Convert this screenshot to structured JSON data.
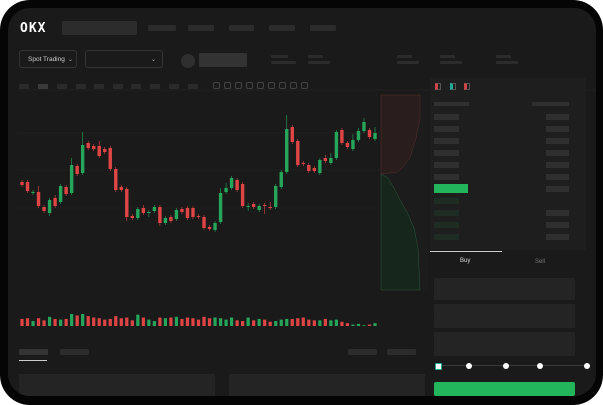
{
  "header": {
    "logo": "OKX",
    "market_selector": "Spot Trading"
  },
  "chart_toolbar_icons": [
    "indicator-icon",
    "chevron-down-icon",
    "interval-icon",
    "chevron-down-icon",
    "line-icon",
    "ruler-icon",
    "camera-icon",
    "settings-icon",
    "fullscreen-icon"
  ],
  "orderbook": {
    "view_icons": [
      "both-sides-icon",
      "bids-only-icon",
      "asks-only-icon"
    ]
  },
  "trade_form": {
    "tabs": [
      "Buy",
      "Sell"
    ],
    "active_tab": "Buy",
    "slider_percent": 0,
    "buy_button_color": "#22b55c"
  },
  "colors": {
    "up": "#26a65b",
    "down": "#e04545",
    "background": "#1a1a1a"
  },
  "chart_data": {
    "type": "candlestick",
    "ylim": [
      -50,
      145
    ],
    "grid": true,
    "ohlc": [
      [
        58,
        60,
        53,
        55
      ],
      [
        58,
        60,
        47,
        49
      ],
      [
        47,
        50,
        45,
        48
      ],
      [
        48,
        54,
        32,
        34
      ],
      [
        33,
        35,
        27,
        29
      ],
      [
        27,
        42,
        24,
        40
      ],
      [
        42,
        45,
        32,
        34
      ],
      [
        38,
        56,
        36,
        54
      ],
      [
        53,
        55,
        44,
        46
      ],
      [
        47,
        82,
        45,
        75
      ],
      [
        74,
        76,
        64,
        66
      ],
      [
        67,
        108,
        65,
        95
      ],
      [
        97,
        99,
        90,
        92
      ],
      [
        94,
        96,
        89,
        91
      ],
      [
        94,
        99,
        82,
        84
      ],
      [
        91,
        93,
        86,
        88
      ],
      [
        92,
        94,
        69,
        71
      ],
      [
        71,
        73,
        48,
        50
      ],
      [
        53,
        55,
        48,
        50
      ],
      [
        51,
        53,
        19,
        23
      ],
      [
        24,
        26,
        20,
        22
      ],
      [
        22,
        33,
        20,
        31
      ],
      [
        32,
        35,
        25,
        27
      ],
      [
        27,
        30,
        23,
        28
      ],
      [
        29,
        35,
        27,
        33
      ],
      [
        33,
        35,
        14,
        17
      ],
      [
        17,
        24,
        15,
        22
      ],
      [
        23,
        25,
        17,
        19
      ],
      [
        21,
        32,
        19,
        30
      ],
      [
        31,
        33,
        26,
        28
      ],
      [
        32,
        34,
        20,
        22
      ],
      [
        32,
        34,
        21,
        23
      ],
      [
        24,
        26,
        21,
        23
      ],
      [
        23,
        25,
        10,
        12
      ],
      [
        13,
        15,
        9,
        11
      ],
      [
        10,
        19,
        8,
        17
      ],
      [
        18,
        52,
        16,
        47
      ],
      [
        48,
        57,
        46,
        52
      ],
      [
        52,
        64,
        50,
        62
      ],
      [
        60,
        62,
        48,
        50
      ],
      [
        56,
        58,
        32,
        34
      ],
      [
        33,
        37,
        29,
        34
      ],
      [
        36,
        38,
        31,
        33
      ],
      [
        30,
        36,
        28,
        34
      ],
      [
        35,
        37,
        26,
        34
      ],
      [
        33,
        38,
        30,
        32
      ],
      [
        33,
        56,
        31,
        54
      ],
      [
        53,
        70,
        51,
        68
      ],
      [
        68,
        125,
        66,
        111
      ],
      [
        113,
        115,
        96,
        98
      ],
      [
        99,
        101,
        73,
        75
      ],
      [
        77,
        79,
        74,
        76
      ],
      [
        75,
        77,
        67,
        69
      ],
      [
        72,
        74,
        67,
        69
      ],
      [
        67,
        82,
        65,
        80
      ],
      [
        82,
        85,
        77,
        79
      ],
      [
        77,
        87,
        75,
        82
      ],
      [
        82,
        110,
        80,
        108
      ],
      [
        110,
        112,
        95,
        97
      ],
      [
        97,
        99,
        91,
        93
      ],
      [
        91,
        106,
        89,
        100
      ],
      [
        100,
        112,
        98,
        109
      ],
      [
        109,
        122,
        107,
        118
      ],
      [
        110,
        112,
        101,
        103
      ],
      [
        101,
        113,
        99,
        107
      ]
    ],
    "volume": [
      10,
      11,
      7,
      11,
      8,
      13,
      10,
      9,
      10,
      17,
      15,
      17,
      14,
      12,
      11,
      9,
      10,
      14,
      11,
      12,
      8,
      16,
      12,
      9,
      7,
      12,
      11,
      12,
      13,
      10,
      12,
      11,
      9,
      13,
      11,
      12,
      11,
      9,
      12,
      8,
      7,
      12,
      8,
      10,
      9,
      6,
      7,
      9,
      10,
      10,
      11,
      12,
      9,
      8,
      8,
      10,
      8,
      9,
      6,
      4,
      2,
      3,
      1,
      2,
      4
    ]
  }
}
